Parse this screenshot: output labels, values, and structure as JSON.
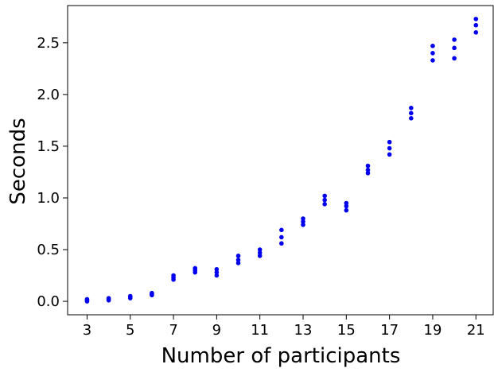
{
  "chart_data": {
    "type": "scatter",
    "xlabel": "Number of participants",
    "ylabel": "Seconds",
    "xlim": [
      2.1,
      21.8
    ],
    "ylim": [
      -0.13,
      2.86
    ],
    "x_ticks": [
      "3",
      "5",
      "7",
      "9",
      "11",
      "13",
      "15",
      "17",
      "19",
      "21"
    ],
    "y_ticks": [
      "0.0",
      "0.5",
      "1.0",
      "1.5",
      "2.0",
      "2.5"
    ],
    "marker_color": "#0000ee",
    "grid": false,
    "points": [
      {
        "x": 3,
        "y": [
          0.0,
          0.01,
          0.02
        ]
      },
      {
        "x": 4,
        "y": [
          0.01,
          0.02,
          0.03
        ]
      },
      {
        "x": 5,
        "y": [
          0.03,
          0.04,
          0.05
        ]
      },
      {
        "x": 6,
        "y": [
          0.06,
          0.07,
          0.08
        ]
      },
      {
        "x": 7,
        "y": [
          0.21,
          0.23,
          0.25
        ]
      },
      {
        "x": 8,
        "y": [
          0.28,
          0.3,
          0.32
        ]
      },
      {
        "x": 9,
        "y": [
          0.25,
          0.28,
          0.31
        ]
      },
      {
        "x": 10,
        "y": [
          0.37,
          0.4,
          0.44
        ]
      },
      {
        "x": 11,
        "y": [
          0.44,
          0.47,
          0.5
        ]
      },
      {
        "x": 12,
        "y": [
          0.56,
          0.62,
          0.69
        ]
      },
      {
        "x": 13,
        "y": [
          0.74,
          0.77,
          0.8
        ]
      },
      {
        "x": 14,
        "y": [
          0.94,
          0.98,
          1.02
        ]
      },
      {
        "x": 15,
        "y": [
          0.88,
          0.92,
          0.95
        ]
      },
      {
        "x": 16,
        "y": [
          1.24,
          1.27,
          1.31
        ]
      },
      {
        "x": 17,
        "y": [
          1.42,
          1.48,
          1.54
        ]
      },
      {
        "x": 18,
        "y": [
          1.77,
          1.82,
          1.87
        ]
      },
      {
        "x": 19,
        "y": [
          2.33,
          2.4,
          2.47
        ]
      },
      {
        "x": 20,
        "y": [
          2.35,
          2.45,
          2.53
        ]
      },
      {
        "x": 21,
        "y": [
          2.6,
          2.67,
          2.73
        ]
      }
    ]
  }
}
